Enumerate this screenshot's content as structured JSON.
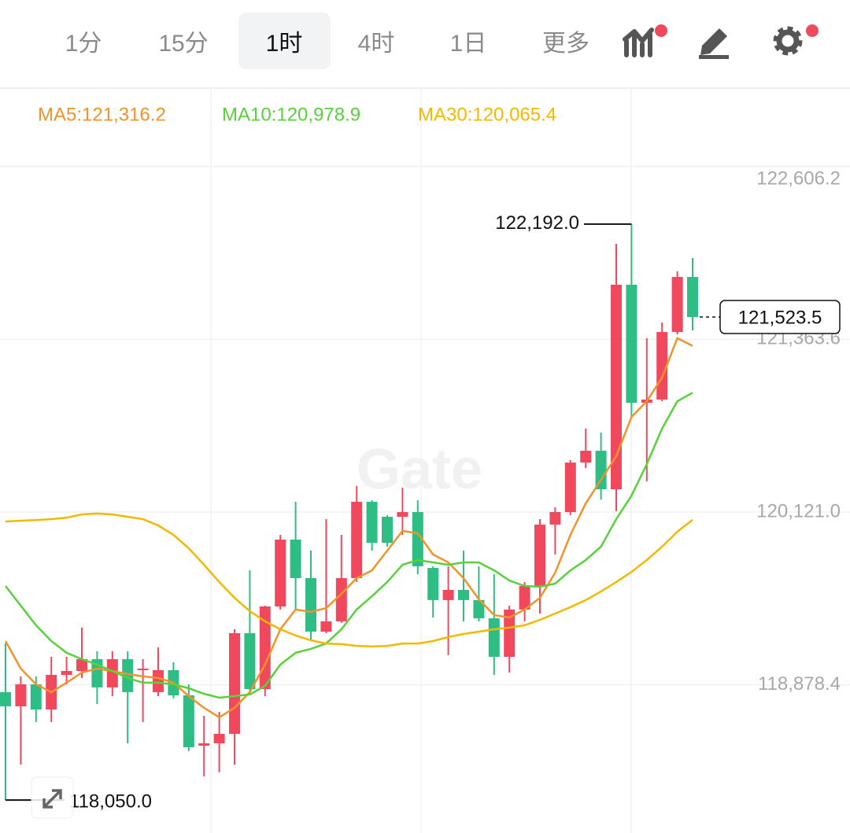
{
  "tabs": [
    "1分",
    "15分",
    "1时",
    "4时",
    "1日",
    "更多"
  ],
  "active_tab": 2,
  "watermark": "Gate",
  "chart_data": {
    "type": "candlestick",
    "up_color": "#f0495e",
    "down_color": "#2ebd85",
    "ylim": [
      117813,
      123153
    ],
    "yticks": [
      {
        "value": 122606.2,
        "label": "122,606.2"
      },
      {
        "value": 121363.6,
        "label": "121,363.6"
      },
      {
        "value": 120121.0,
        "label": "120,121.0"
      },
      {
        "value": 118878.4,
        "label": "118,878.4"
      }
    ],
    "grid": true,
    "open": [
      118826,
      118724,
      118882,
      118701,
      118950,
      118978,
      119063,
      118860,
      119063,
      118984,
      118826,
      118984,
      118803,
      118441,
      118458,
      118526,
      119250,
      118848,
      119442,
      119923,
      119646,
      119261,
      119335,
      119646,
      120195,
      120087,
      120087,
      120121,
      119719,
      119488,
      119561,
      119488,
      119357,
      119080,
      119420,
      119589,
      120031,
      120121,
      120477,
      120562,
      120285,
      121756,
      120907,
      120930,
      121416,
      121812
    ],
    "high": [
      119176,
      118939,
      118939,
      119080,
      119080,
      119290,
      119120,
      119120,
      119120,
      119063,
      119148,
      119041,
      118882,
      118656,
      118684,
      119278,
      119702,
      119448,
      119957,
      120195,
      119844,
      120070,
      119957,
      120308,
      120206,
      120098,
      120296,
      120206,
      119731,
      119731,
      119844,
      119731,
      119674,
      119448,
      119618,
      120070,
      120155,
      120494,
      120721,
      120692,
      122050,
      122192.0,
      121371,
      121484,
      121852,
      121948
    ],
    "low": [
      118050.0,
      118305,
      118611,
      118611,
      118882,
      118928,
      118741,
      118797,
      118458,
      118611,
      118797,
      118781,
      118402,
      118221,
      118249,
      118305,
      118826,
      118797,
      119420,
      119420,
      119193,
      119250,
      119324,
      119618,
      119844,
      119872,
      119957,
      119674,
      119363,
      119092,
      119335,
      119335,
      118950,
      118967,
      119335,
      119391,
      119816,
      120098,
      120438,
      120211,
      120127,
      120805,
      120342,
      120918,
      121399,
      121428
    ],
    "close": [
      118724,
      118882,
      118701,
      118950,
      118978,
      119063,
      118860,
      119063,
      118826,
      118995,
      118984,
      118803,
      118430,
      118458,
      118526,
      119250,
      118848,
      119442,
      119923,
      119646,
      119261,
      119335,
      119646,
      120195,
      119900,
      119900,
      120121,
      119731,
      119488,
      119561,
      119488,
      119357,
      119080,
      119420,
      119589,
      120031,
      120121,
      120477,
      120562,
      120285,
      121756,
      120907,
      120930,
      121416,
      121812,
      121523.5
    ],
    "series": [
      {
        "name": "MA5:121,316.2",
        "color": "#f0932b",
        "values": [
          119193,
          118995,
          118882,
          118826,
          118894,
          118967,
          118995,
          118978,
          118956,
          118939,
          118928,
          118894,
          118797,
          118713,
          118645,
          118713,
          118826,
          119024,
          119278,
          119420,
          119403,
          119431,
          119533,
          119646,
          119702,
          119844,
          119985,
          119968,
          119816,
          119759,
          119646,
          119493,
          119380,
          119363,
          119420,
          119504,
          119685,
          119957,
          120183,
          120353,
          120523,
          120805,
          120918,
          121088,
          121371,
          121316.2
        ]
      },
      {
        "name": "MA10:120,978.9",
        "color": "#58d13c",
        "values": [
          119589,
          119448,
          119307,
          119193,
          119109,
          119063,
          119024,
          118978,
          118928,
          118894,
          118894,
          118882,
          118854,
          118814,
          118786,
          118797,
          118809,
          118871,
          119024,
          119109,
          119137,
          119176,
          119278,
          119420,
          119516,
          119618,
          119742,
          119776,
          119759,
          119742,
          119759,
          119759,
          119702,
          119629,
          119589,
          119584,
          119606,
          119702,
          119776,
          119872,
          120070,
          120240,
          120466,
          120721,
          120918,
          120978.9
        ]
      },
      {
        "name": "MA30:120,065.4",
        "color": "#f5b800",
        "values": [
          120053,
          120059,
          120064,
          120070,
          120081,
          120104,
          120110,
          120104,
          120087,
          120070,
          120025,
          119957,
          119861,
          119742,
          119618,
          119504,
          119408,
          119335,
          119278,
          119233,
          119199,
          119176,
          119171,
          119159,
          119154,
          119159,
          119176,
          119176,
          119193,
          119222,
          119244,
          119261,
          119278,
          119290,
          119307,
          119346,
          119391,
          119437,
          119488,
          119550,
          119618,
          119691,
          119776,
          119872,
          119980,
          120065.4
        ]
      }
    ],
    "high_label": {
      "value": 122192.0,
      "label": "122,192.0"
    },
    "low_label": {
      "value": 118050.0,
      "label": "118,050.0"
    },
    "last_price": {
      "value": 121523.5,
      "label": "121,523.5"
    }
  }
}
